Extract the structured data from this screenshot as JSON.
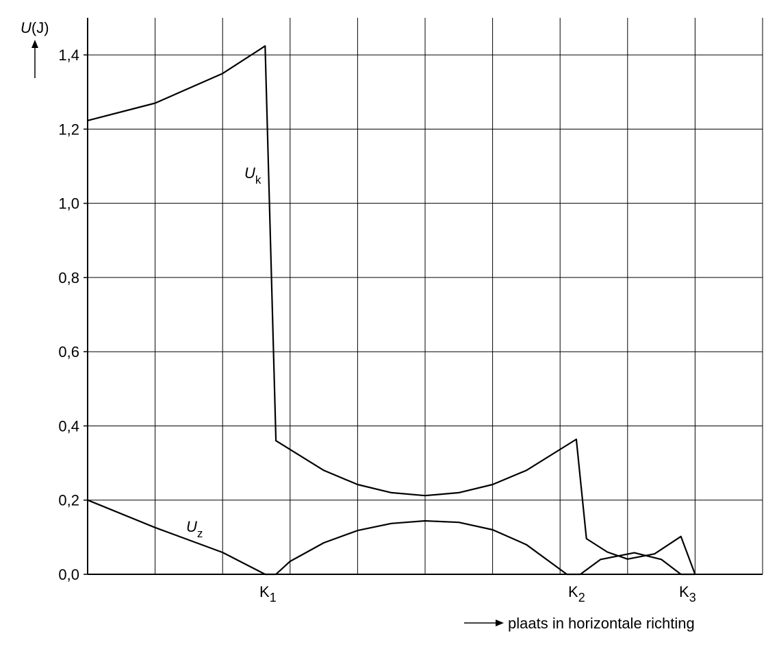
{
  "chart_data": {
    "type": "line",
    "ylabel": {
      "symbol": "U",
      "unit": "(J)"
    },
    "xlabel": "plaats in horizontale richting",
    "xlim": [
      0,
      10
    ],
    "xticks": [
      0,
      1,
      2,
      3,
      4,
      5,
      6,
      7,
      8,
      9,
      10
    ],
    "ylim": [
      0,
      1.5
    ],
    "yticks": [
      {
        "value": 0,
        "label": "0,0"
      },
      {
        "value": 0.2,
        "label": "0,2"
      },
      {
        "value": 0.4,
        "label": "0,4"
      },
      {
        "value": 0.6,
        "label": "0,6"
      },
      {
        "value": 0.8,
        "label": "0,8"
      },
      {
        "value": 1.0,
        "label": "1,0"
      },
      {
        "value": 1.2,
        "label": "1,2"
      },
      {
        "value": 1.4,
        "label": "1,4"
      }
    ],
    "grid": true,
    "markers": [
      {
        "symbol": "K",
        "sub": "1"
      },
      {
        "symbol": "K",
        "sub": "2"
      },
      {
        "symbol": "K",
        "sub": "3"
      }
    ],
    "series": [
      {
        "name": "U",
        "sub": "k",
        "color": "#000000",
        "x": [
          0,
          1.0,
          2.0,
          2.63,
          2.79,
          3.5,
          4.0,
          4.5,
          5.0,
          5.5,
          6.0,
          6.5,
          7.24,
          7.39,
          7.7,
          8.0,
          8.4,
          8.79,
          9.0
        ],
        "values": [
          1.223,
          1.27,
          1.35,
          1.424,
          0.36,
          0.28,
          0.242,
          0.22,
          0.212,
          0.22,
          0.242,
          0.28,
          0.364,
          0.096,
          0.06,
          0.041,
          0.055,
          0.102,
          0
        ]
      },
      {
        "name": "U",
        "sub": "z",
        "color": "#000000",
        "x": [
          0,
          1.0,
          2.0,
          2.63,
          2.79,
          3.0,
          3.5,
          4.0,
          4.5,
          5.0,
          5.5,
          6.0,
          6.5,
          7.1,
          7.3,
          7.6,
          8.1,
          8.5,
          8.79,
          9.0
        ],
        "values": [
          0.2,
          0.126,
          0.059,
          0,
          0,
          0.035,
          0.085,
          0.118,
          0.137,
          0.144,
          0.14,
          0.12,
          0.08,
          0,
          0,
          0.04,
          0.058,
          0.04,
          0,
          0
        ]
      }
    ]
  }
}
